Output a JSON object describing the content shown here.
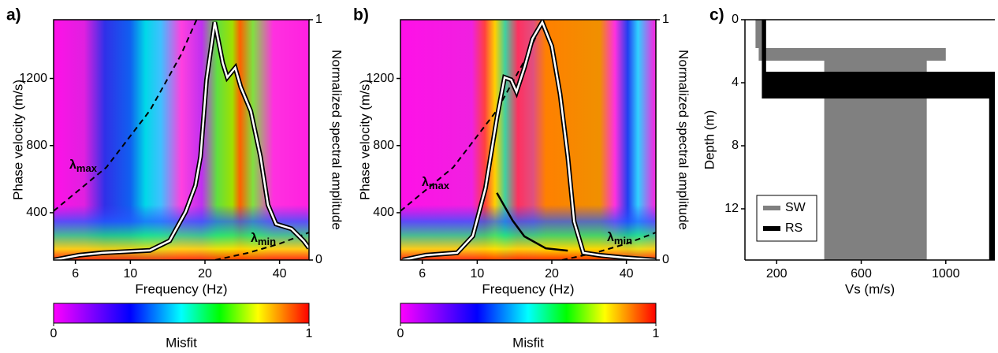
{
  "chart_data": [
    {
      "type": "heatmap",
      "panel_label": "a)",
      "xlabel": "Frequency (Hz)",
      "ylabel": "Phase velocity (m/s)",
      "y2label": "Normalized spectral amplitude",
      "log_x": true,
      "xlim": [
        4.9,
        52.6
      ],
      "xticks": [
        6,
        10,
        20,
        40
      ],
      "ylim": [
        118,
        1550
      ],
      "yticks": [
        400,
        800,
        1200
      ],
      "y2lim": [
        0,
        1
      ],
      "y2ticks": [
        0,
        1
      ],
      "spectrum": {
        "color": "#ffffff",
        "axis": "y2",
        "x": [
          4.9,
          6.2,
          7.7,
          12.0,
          14.4,
          16.7,
          18.3,
          19.2,
          20.3,
          21.9,
          23.6,
          24.6,
          26.5,
          27.9,
          30.6,
          33.5,
          35.9,
          38.7,
          44.7,
          50,
          52.6
        ],
        "values": [
          0,
          0.02,
          0.03,
          0.04,
          0.08,
          0.2,
          0.31,
          0.43,
          0.75,
          0.99,
          0.82,
          0.76,
          0.8,
          0.72,
          0.62,
          0.43,
          0.23,
          0.15,
          0.13,
          0.08,
          0.05
        ]
      },
      "wavelength_limits": [
        {
          "label": {
            "text": "λ",
            "sub": "max"
          },
          "color": "#000000",
          "x": [
            4.9,
            8,
            12,
            16,
            18.5
          ],
          "values": [
            410,
            670,
            1010,
            1340,
            1550
          ]
        },
        {
          "label": {
            "text": "λ",
            "sub": "min"
          },
          "color": "#000000",
          "x": [
            22,
            30,
            40,
            52.6
          ],
          "values": [
            118,
            161,
            215,
            282
          ]
        }
      ],
      "colorbar": {
        "label": "Misfit",
        "lim": [
          0,
          1
        ],
        "ticks": [
          0,
          1
        ]
      }
    },
    {
      "type": "heatmap",
      "panel_label": "b)",
      "xlabel": "Frequency (Hz)",
      "ylabel": "Phase velocity (m/s)",
      "y2label": "Normalized spectral amplitude",
      "log_x": true,
      "xlim": [
        4.9,
        52.6
      ],
      "xticks": [
        6,
        10,
        20,
        40
      ],
      "ylim": [
        118,
        1550
      ],
      "yticks": [
        400,
        800,
        1200
      ],
      "y2lim": [
        0,
        1
      ],
      "y2ticks": [
        0,
        1
      ],
      "spectrum": {
        "color": "#ffffff",
        "axis": "y2",
        "x": [
          5.0,
          6.2,
          8.3,
          9.6,
          10.8,
          12.0,
          12.9,
          13.7,
          14.4,
          15.5,
          16.7,
          18.3,
          20.0,
          21.6,
          23.2,
          24.6,
          26.8,
          31.1,
          38.7,
          52.6
        ],
        "values": [
          0,
          0.02,
          0.03,
          0.1,
          0.3,
          0.59,
          0.76,
          0.75,
          0.7,
          0.8,
          0.92,
          0.99,
          0.89,
          0.69,
          0.43,
          0.16,
          0.03,
          0.02,
          0.01,
          0
        ]
      },
      "dispersion_curve": {
        "color": "#000000",
        "x": [
          12.0,
          13.9,
          15.5,
          18.9,
          23.2
        ],
        "values": [
          518,
          353,
          259,
          188,
          174
        ]
      },
      "wavelength_limits": [
        {
          "label": {
            "text": "λ",
            "sub": "max"
          },
          "color": "#000000",
          "x": [
            4.9,
            8,
            12,
            16,
            18.5
          ],
          "values": [
            410,
            670,
            1010,
            1340,
            1550
          ]
        },
        {
          "label": {
            "text": "λ",
            "sub": "min"
          },
          "color": "#000000",
          "x": [
            22,
            30,
            40,
            52.6
          ],
          "values": [
            118,
            161,
            215,
            282
          ]
        }
      ],
      "colorbar": {
        "label": "Misfit",
        "lim": [
          0,
          1
        ],
        "ticks": [
          0,
          1
        ]
      }
    },
    {
      "type": "profile",
      "panel_label": "c)",
      "xlabel": "Vs (m/s)",
      "ylabel": "Depth (m)",
      "xlim": [
        50,
        1232
      ],
      "xticks": [
        200,
        600,
        1000
      ],
      "ylim": [
        0,
        15.25
      ],
      "yticks": [
        0,
        4,
        8,
        12
      ],
      "y_inverted": true,
      "legend": "bottom-left",
      "series": [
        {
          "name": "SW",
          "color": "#808080",
          "layers": [
            {
              "vs": [
                100,
                135
              ],
              "depth": [
                0,
                1.8
              ]
            },
            {
              "vs": [
                115,
                1000
              ],
              "depth": [
                1.8,
                2.6
              ]
            },
            {
              "vs": [
                425,
                910
              ],
              "depth": [
                2.6,
                15.25
              ]
            }
          ]
        },
        {
          "name": "RS",
          "color": "#000000",
          "layers": [
            {
              "vs": [
                130,
                150
              ],
              "depth": [
                0,
                3.3
              ]
            },
            {
              "vs": [
                130,
                1232
              ],
              "depth": [
                3.3,
                5
              ]
            },
            {
              "vs": [
                1205,
                1232
              ],
              "depth": [
                5,
                15.25
              ]
            }
          ]
        }
      ]
    }
  ]
}
